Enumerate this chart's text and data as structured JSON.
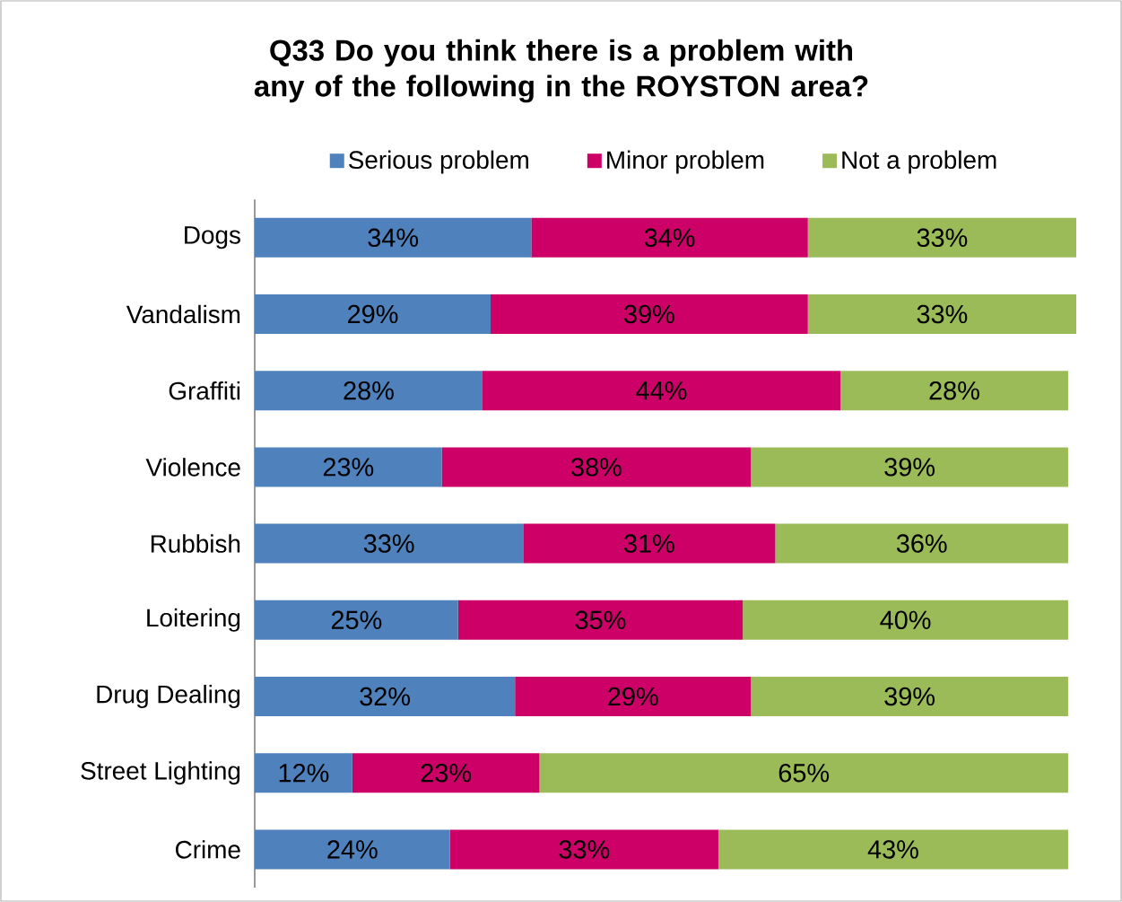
{
  "chart_data": {
    "type": "bar",
    "orientation": "horizontal",
    "stacked": true,
    "title": "Q33 Do you think there is a problem with any of the following in the ROYSTON area?",
    "categories": [
      "Dogs",
      "Vandalism",
      "Graffiti",
      "Violence",
      "Rubbish",
      "Loitering",
      "Drug Dealing",
      "Street Lighting",
      "Crime"
    ],
    "xlim": [
      0,
      101
    ],
    "legend": "top",
    "grid": false,
    "series": [
      {
        "name": "Serious problem",
        "color": "#4f81bd",
        "values": [
          34,
          29,
          28,
          23,
          33,
          25,
          32,
          12,
          24
        ],
        "value_labels": [
          "34%",
          "29%",
          "28%",
          "23%",
          "33%",
          "25%",
          "32%",
          "12%",
          "24%"
        ]
      },
      {
        "name": "Minor problem",
        "color": "#cc0066",
        "values": [
          34,
          39,
          44,
          38,
          31,
          35,
          29,
          23,
          33
        ],
        "value_labels": [
          "34%",
          "39%",
          "44%",
          "38%",
          "31%",
          "35%",
          "29%",
          "23%",
          "33%"
        ]
      },
      {
        "name": "Not a problem",
        "color": "#9bbb59",
        "values": [
          33,
          33,
          28,
          39,
          36,
          40,
          39,
          65,
          43
        ],
        "value_labels": [
          "33%",
          "33%",
          "28%",
          "39%",
          "36%",
          "40%",
          "39%",
          "65%",
          "43%"
        ]
      }
    ]
  }
}
